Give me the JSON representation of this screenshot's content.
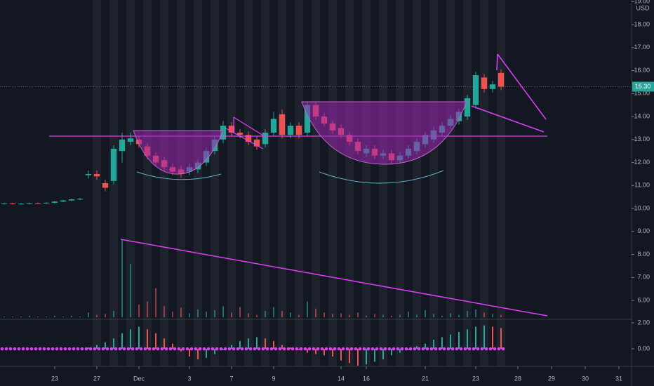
{
  "chart_data": {
    "type": "candlestick",
    "open": [
      10.2,
      10.22,
      10.2,
      10.21,
      10.23,
      10.22,
      10.25,
      10.3,
      10.35,
      10.4,
      11.45,
      11.5,
      11.1,
      11.2,
      12.5,
      12.9,
      13.0,
      12.7,
      12.3,
      12.1,
      11.8,
      11.7,
      11.6,
      11.7,
      12.0,
      12.5,
      13.0,
      13.6,
      13.3,
      13.2,
      13.0,
      12.8,
      13.3,
      14.1,
      13.2,
      13.6,
      13.3,
      14.5,
      14.0,
      13.7,
      13.5,
      13.2,
      12.9,
      12.4,
      12.6,
      12.3,
      12.4,
      12.1,
      12.3,
      12.5,
      12.8,
      13.0,
      13.3,
      13.6,
      13.8,
      14.0,
      14.5,
      15.7,
      15.2,
      15.9
    ],
    "high": [
      10.25,
      10.25,
      10.24,
      10.26,
      10.26,
      10.28,
      10.33,
      10.38,
      10.43,
      10.46,
      11.65,
      11.65,
      11.25,
      12.75,
      13.3,
      13.3,
      13.15,
      12.85,
      12.45,
      12.25,
      11.95,
      11.85,
      11.95,
      12.15,
      12.65,
      13.15,
      13.8,
      13.75,
      13.45,
      13.35,
      13.15,
      13.45,
      14.2,
      14.3,
      13.75,
      13.75,
      14.65,
      14.65,
      14.15,
      13.85,
      13.65,
      13.35,
      13.05,
      12.75,
      12.75,
      12.55,
      12.55,
      12.45,
      12.75,
      13.05,
      13.35,
      13.55,
      13.75,
      14.05,
      14.35,
      14.95,
      15.95,
      15.85,
      15.55,
      16.05
    ],
    "low": [
      10.17,
      10.17,
      10.17,
      10.18,
      10.2,
      10.2,
      10.22,
      10.27,
      10.32,
      10.37,
      11.3,
      11.25,
      10.75,
      11.05,
      12.0,
      12.75,
      12.65,
      12.15,
      11.85,
      11.65,
      11.45,
      11.35,
      11.45,
      11.55,
      11.85,
      12.35,
      12.85,
      13.15,
      13.05,
      12.75,
      12.55,
      12.65,
      13.15,
      13.05,
      13.05,
      13.05,
      13.15,
      13.85,
      13.55,
      13.25,
      13.05,
      12.75,
      12.35,
      12.25,
      12.15,
      12.15,
      11.95,
      11.95,
      12.15,
      12.35,
      12.65,
      12.85,
      13.15,
      13.45,
      13.65,
      13.85,
      14.35,
      15.05,
      15.05,
      15.15
    ],
    "close": [
      10.22,
      10.2,
      10.21,
      10.23,
      10.22,
      10.25,
      10.3,
      10.35,
      10.4,
      10.42,
      11.5,
      11.4,
      10.9,
      12.6,
      13.0,
      13.05,
      12.8,
      12.3,
      12.0,
      11.8,
      11.6,
      11.5,
      11.8,
      12.0,
      12.5,
      13.0,
      13.6,
      13.3,
      13.2,
      12.9,
      12.7,
      13.3,
      13.9,
      13.2,
      13.6,
      13.2,
      14.5,
      14.0,
      13.7,
      13.4,
      13.2,
      12.9,
      12.5,
      12.6,
      12.3,
      12.4,
      12.1,
      12.3,
      12.6,
      12.9,
      13.2,
      13.4,
      13.6,
      13.9,
      14.2,
      14.8,
      15.8,
      15.2,
      15.4,
      15.3
    ],
    "volume": [
      1,
      1,
      1,
      2,
      1,
      1,
      2,
      1,
      2,
      1,
      6,
      3,
      4,
      8,
      98,
      68,
      16,
      20,
      37,
      14,
      7,
      12,
      5,
      10,
      7,
      9,
      14,
      6,
      13,
      5,
      3,
      8,
      13,
      8,
      6,
      3,
      20,
      11,
      6,
      4,
      5,
      3,
      6,
      2,
      4,
      3,
      2,
      3,
      7,
      3,
      9,
      4,
      2,
      5,
      3,
      8,
      10,
      6,
      4,
      3
    ],
    "volume_ylim": [
      0,
      100
    ],
    "oscillator": {
      "axis": "y2",
      "values": [
        0,
        0,
        0,
        0,
        0,
        0,
        0,
        0,
        0,
        0,
        0.1,
        0.3,
        0.5,
        0.8,
        1.2,
        1.5,
        1.7,
        1.5,
        1.2,
        0.8,
        0.4,
        -0.2,
        -0.6,
        -0.8,
        -0.7,
        -0.4,
        -0.1,
        0.3,
        0.6,
        0.8,
        0.9,
        0.8,
        0.6,
        0.3,
        0.1,
        -0.1,
        -0.3,
        -0.4,
        -0.5,
        -0.6,
        -0.9,
        -1.1,
        -1.3,
        -1.2,
        -1.0,
        -0.8,
        -0.5,
        -0.3,
        -0.1,
        0.2,
        0.4,
        0.7,
        0.9,
        1.1,
        1.3,
        1.5,
        1.7,
        1.8,
        1.7,
        1.6
      ]
    },
    "up_color": "#26a69a",
    "down_color": "#ef5350",
    "currency": "USD",
    "last_price": {
      "value": 15.3,
      "label": "15.30"
    },
    "xlim": [
      -0.5,
      74.5
    ],
    "xticks": [
      {
        "value": 6,
        "label": "23"
      },
      {
        "value": 11,
        "label": "27"
      },
      {
        "value": 16,
        "label": "Dec"
      },
      {
        "value": 22,
        "label": "3"
      },
      {
        "value": 27,
        "label": "7"
      },
      {
        "value": 32,
        "label": "9"
      },
      {
        "value": 40,
        "label": "14"
      },
      {
        "value": 43,
        "label": "16"
      },
      {
        "value": 50,
        "label": "21"
      },
      {
        "value": 56,
        "label": "23"
      },
      {
        "value": 61,
        "label": "28"
      },
      {
        "value": 65,
        "label": "29"
      },
      {
        "value": 69,
        "label": "30"
      },
      {
        "value": 73,
        "label": "31"
      }
    ],
    "ylim": [
      5.27,
      19.07
    ],
    "yticks": [
      {
        "value": 19,
        "label": "19.00"
      },
      {
        "value": 18,
        "label": "18.00"
      },
      {
        "value": 17,
        "label": "17.00"
      },
      {
        "value": 16,
        "label": "16.00"
      },
      {
        "value": 15,
        "label": "15.00"
      },
      {
        "value": 14,
        "label": "14.00"
      },
      {
        "value": 13,
        "label": "13.00"
      },
      {
        "value": 12,
        "label": "12.00"
      },
      {
        "value": 11,
        "label": "11.00"
      },
      {
        "value": 10,
        "label": "10.00"
      },
      {
        "value": 9,
        "label": "9.00"
      },
      {
        "value": 8,
        "label": "8.00"
      },
      {
        "value": 7,
        "label": "7.00"
      },
      {
        "value": 6,
        "label": "6.00"
      }
    ],
    "y2lim": [
      -1.35,
      2.27
    ],
    "y2ticks": [
      {
        "value": 2,
        "label": "2.00"
      },
      {
        "value": 0,
        "label": "0.00"
      }
    ]
  }
}
